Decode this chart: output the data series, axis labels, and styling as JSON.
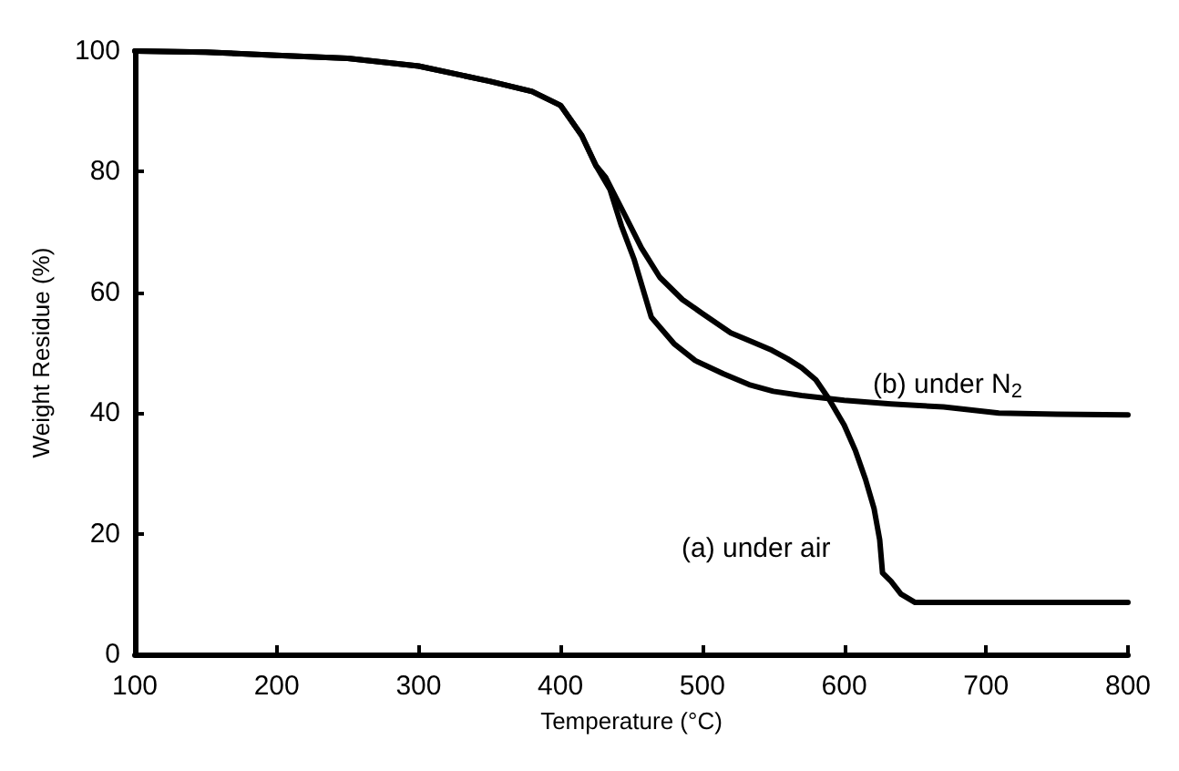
{
  "chart_data": {
    "type": "line",
    "xlabel": "Temperature (°C)",
    "ylabel": "Weight Residue (%)",
    "xlim": [
      100,
      800
    ],
    "xticks": [
      100,
      200,
      300,
      400,
      500,
      600,
      700,
      800
    ],
    "ylim": [
      0,
      100
    ],
    "yticks": [
      0,
      20,
      40,
      60,
      80,
      100
    ],
    "grid": false,
    "legend": false,
    "marker": "none",
    "line_style": "solid",
    "series": [
      {
        "name": "(a) under air",
        "color": "#000000",
        "x": [
          100,
          150,
          200,
          250,
          300,
          350,
          380,
          400,
          415,
          425,
          432,
          445,
          457,
          470,
          486,
          500,
          520,
          535,
          549,
          560,
          570,
          580,
          589,
          600,
          608,
          615,
          621,
          625,
          627,
          633,
          640,
          650,
          700,
          750,
          800
        ],
        "values": [
          100,
          99.8,
          99.3,
          98.8,
          97.5,
          95,
          93.3,
          91,
          86,
          81,
          79,
          73,
          67.4,
          62.5,
          58.8,
          56.5,
          53.3,
          51.8,
          50.4,
          49,
          47.5,
          45.5,
          42.4,
          38,
          33.7,
          29,
          24.2,
          19,
          13.5,
          12.1,
          10,
          8.6,
          8.6,
          8.6,
          8.6
        ]
      },
      {
        "name": "(b) under N$_{2}$",
        "color": "#000000",
        "x": [
          100,
          150,
          200,
          250,
          300,
          350,
          380,
          400,
          415,
          425,
          435,
          443,
          452,
          464,
          480,
          495,
          515,
          533,
          550,
          570,
          600,
          633,
          670,
          709,
          750,
          800
        ],
        "values": [
          100,
          99.8,
          99.3,
          98.8,
          97.5,
          95,
          93.3,
          91,
          86,
          81,
          77,
          71,
          65.4,
          55.9,
          51.5,
          48.7,
          46.5,
          44.7,
          43.6,
          42.9,
          42.1,
          41.5,
          41,
          40,
          39.8,
          39.7
        ]
      }
    ]
  }
}
